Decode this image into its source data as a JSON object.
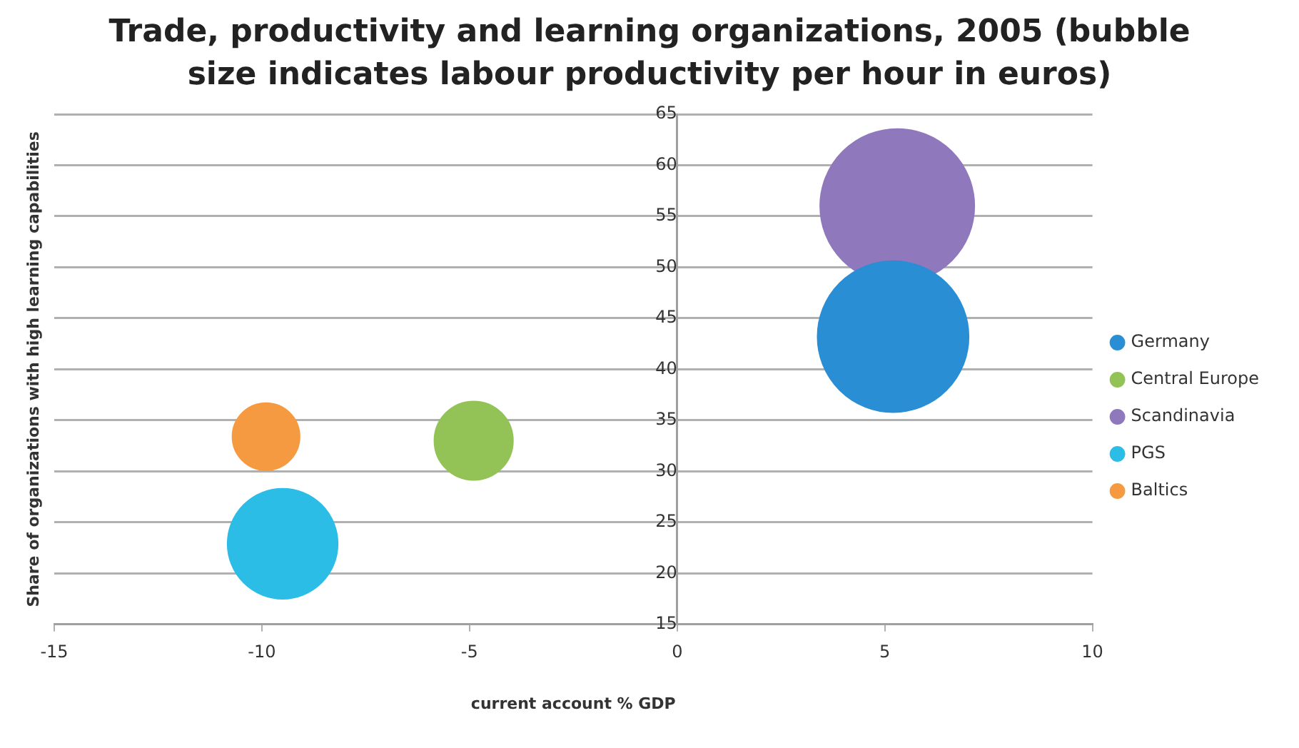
{
  "chart_data": {
    "type": "bubble",
    "title": "Trade, productivity and learning organizations, 2005 (bubble size indicates labour productivity per hour in euros)",
    "xlabel": "current account % GDP",
    "ylabel": "Share of organizations with high learning capabilities",
    "series": [
      {
        "name": "Germany",
        "color": "#2a8ed4",
        "x": [
          5.2
        ],
        "values": [
          43.2
        ],
        "sizes": [
          0.96
        ]
      },
      {
        "name": "Central Europe",
        "color": "#93c256",
        "x": [
          -4.9
        ],
        "values": [
          33
        ],
        "sizes": [
          0.26
        ]
      },
      {
        "name": "Scandinavia",
        "color": "#9078bd",
        "x": [
          5.3
        ],
        "values": [
          56
        ],
        "sizes": [
          1
        ]
      },
      {
        "name": "PGS",
        "color": "#2bbde6",
        "x": [
          -9.5
        ],
        "values": [
          22.9
        ],
        "sizes": [
          0.51
        ]
      },
      {
        "name": "Baltics",
        "color": "#f59a40",
        "x": [
          -9.9
        ],
        "values": [
          33.4
        ],
        "sizes": [
          0.19
        ]
      }
    ],
    "xlim": [
      -15,
      10
    ],
    "xticks": [
      -15,
      -10,
      -5,
      0,
      5,
      10
    ],
    "ylim": [
      15,
      65
    ],
    "yticks": [
      15,
      20,
      25,
      30,
      35,
      40,
      45,
      50,
      55,
      60,
      65
    ],
    "grid": "y",
    "legend": "right"
  }
}
